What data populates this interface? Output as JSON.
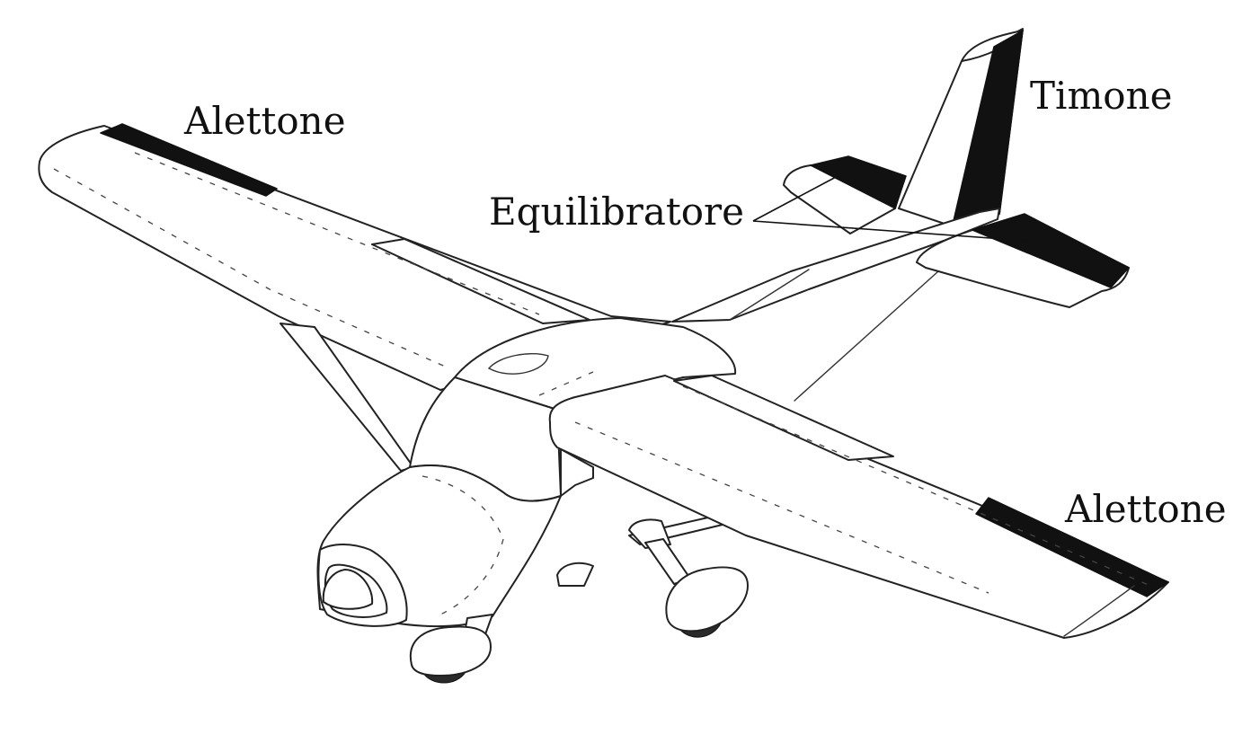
{
  "labels": {
    "aileron_left": "Alettone",
    "rudder": "Timone",
    "elevator": "Equilibratore",
    "aileron_right": "Alettone"
  },
  "colors": {
    "control_surface": "#111111",
    "outline": "#222222",
    "background": "#ffffff"
  }
}
